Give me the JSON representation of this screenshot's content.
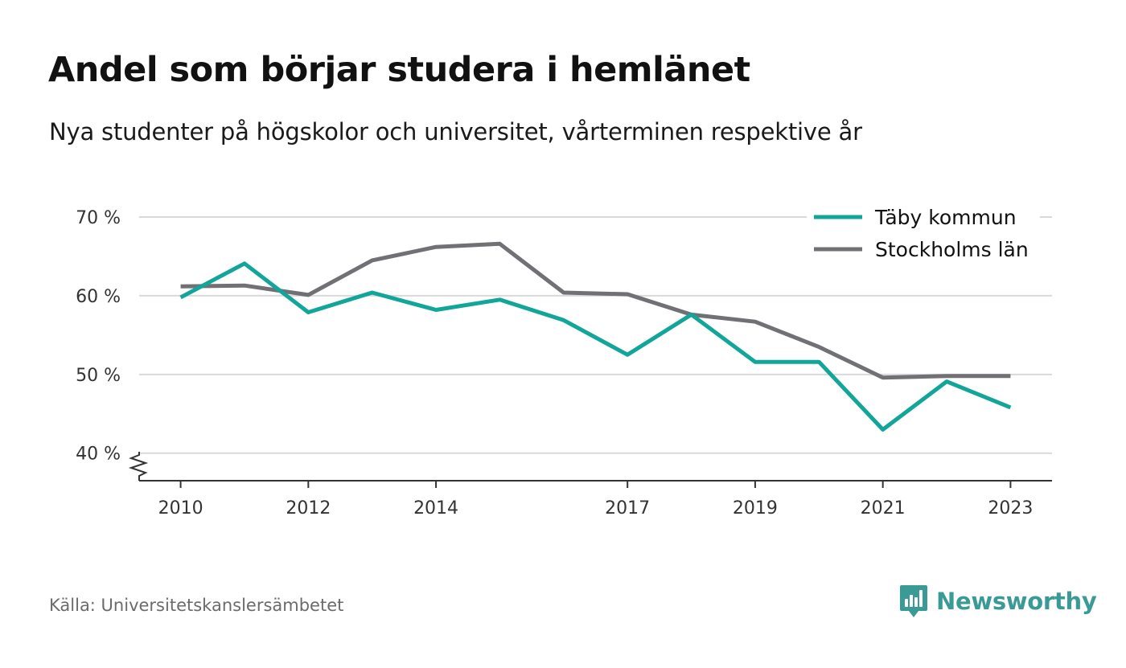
{
  "header": {
    "title": "Andel som börjar studera i hemlänet",
    "subtitle": "Nya studenter på högskolor och universitet, vårterminen respektive år"
  },
  "footer": {
    "source": "Källa: Universitetskanslersämbetet",
    "brand": "Newsworthy"
  },
  "colors": {
    "taby": "#12a59a",
    "stockholm": "#707075",
    "grid": "#d9d9d9",
    "brand": "#3a9b96"
  },
  "chart_data": {
    "type": "line",
    "title": "Andel som börjar studera i hemlänet",
    "subtitle": "Nya studenter på högskolor och universitet, vårterminen respektive år",
    "xlabel": "",
    "ylabel": "",
    "x": [
      2010,
      2011,
      2012,
      2013,
      2014,
      2015,
      2016,
      2017,
      2018,
      2019,
      2020,
      2021,
      2022,
      2023
    ],
    "xticks": [
      2010,
      2012,
      2014,
      2017,
      2019,
      2021,
      2023
    ],
    "yticks": [
      40,
      50,
      60,
      70
    ],
    "ytick_labels": [
      "40 %",
      "50 %",
      "60 %",
      "70 %"
    ],
    "ylim": [
      36.5,
      70
    ],
    "xlim": [
      2009.35,
      2023.65
    ],
    "grid": true,
    "axis_break": true,
    "legend_position": "top-right",
    "series": [
      {
        "name": "Täby kommun",
        "values": [
          59.8,
          64.1,
          57.9,
          60.4,
          58.2,
          59.5,
          56.9,
          52.5,
          57.6,
          51.6,
          51.6,
          43.0,
          49.1,
          45.8
        ]
      },
      {
        "name": "Stockholms län",
        "values": [
          61.2,
          61.3,
          60.1,
          64.5,
          66.2,
          66.6,
          60.4,
          60.2,
          57.6,
          56.7,
          53.5,
          49.6,
          49.8,
          49.8
        ]
      }
    ]
  }
}
